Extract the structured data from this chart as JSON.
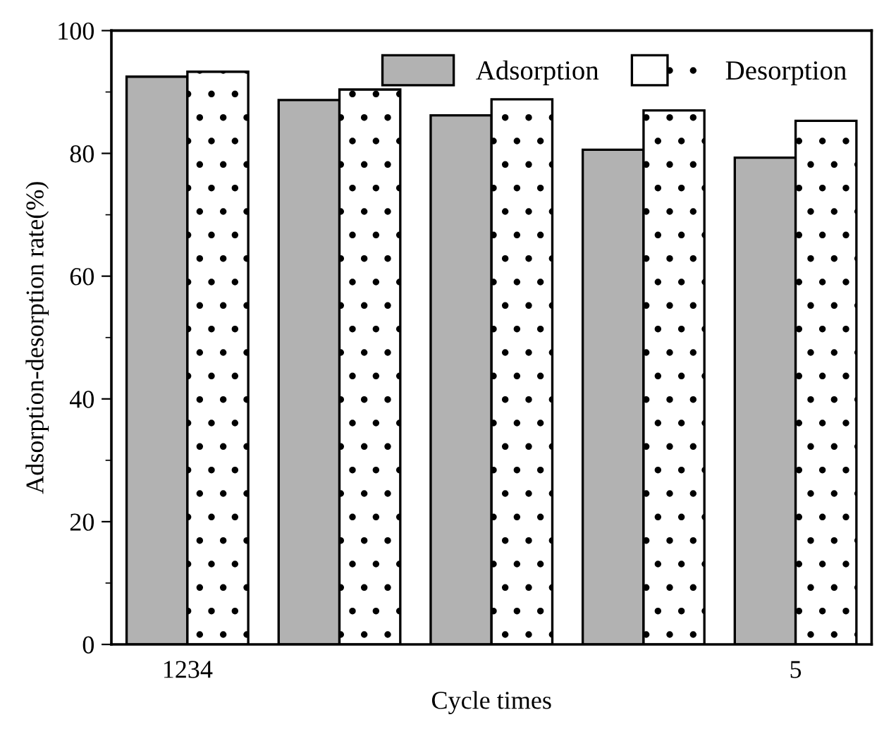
{
  "chart_data": {
    "type": "bar",
    "xlabel": "Cycle times",
    "ylabel": "Adsorption-desorption rate(%)",
    "categories": [
      "1234",
      null,
      null,
      null,
      "5"
    ],
    "series": [
      {
        "name": "Adsorption",
        "color": "#b2b2b2",
        "values": [
          92.5,
          88.7,
          86.2,
          80.6,
          79.3
        ]
      },
      {
        "name": "Desorption",
        "color": "#ffffff",
        "values": [
          93.3,
          90.4,
          88.8,
          87.0,
          85.3
        ]
      }
    ],
    "ylim": [
      0,
      100
    ],
    "yticks": [
      0,
      20,
      40,
      60,
      80,
      100
    ],
    "grid": false,
    "legend": "top right"
  }
}
